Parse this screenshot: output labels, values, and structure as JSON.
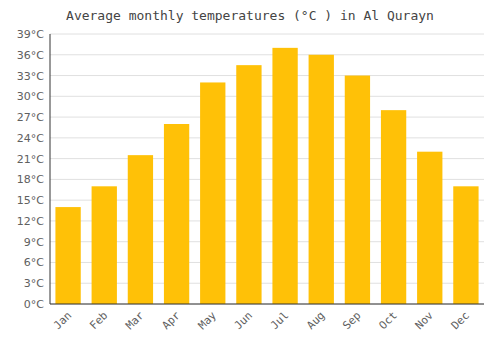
{
  "chart_data": {
    "type": "bar",
    "title": "Average monthly temperatures (°C ) in Al Qurayn",
    "categories": [
      "Jan",
      "Feb",
      "Mar",
      "Apr",
      "May",
      "Jun",
      "Jul",
      "Aug",
      "Sep",
      "Oct",
      "Nov",
      "Dec"
    ],
    "values": [
      14,
      17,
      21.5,
      26,
      32,
      34.5,
      37,
      36,
      33,
      28,
      22,
      17
    ],
    "color": "#FFC107",
    "ylim": [
      0,
      39
    ],
    "yticks": [
      {
        "value": 0,
        "label": "0°C"
      },
      {
        "value": 3,
        "label": "3°C"
      },
      {
        "value": 6,
        "label": "6°C"
      },
      {
        "value": 9,
        "label": "9°C"
      },
      {
        "value": 12,
        "label": "12°C"
      },
      {
        "value": 15,
        "label": "15°C"
      },
      {
        "value": 18,
        "label": "18°C"
      },
      {
        "value": 21,
        "label": "21°C"
      },
      {
        "value": 24,
        "label": "24°C"
      },
      {
        "value": 27,
        "label": "27°C"
      },
      {
        "value": 30,
        "label": "30°C"
      },
      {
        "value": 33,
        "label": "33°C"
      },
      {
        "value": 36,
        "label": "36°C"
      },
      {
        "value": 39,
        "label": "39°C"
      }
    ],
    "grid": true
  }
}
